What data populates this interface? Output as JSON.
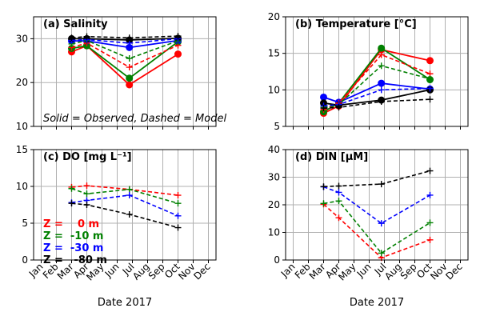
{
  "x_label": "Date 2017",
  "months": [
    "Jan",
    "Feb",
    "Mar",
    "Apr",
    "May",
    "Jun",
    "Jul",
    "Aug",
    "Sep",
    "Oct",
    "Nov",
    "Dec"
  ],
  "depth_legend": [
    {
      "label": "Z =    0 m",
      "color": "#ff0000"
    },
    {
      "label": "Z =  -10 m",
      "color": "#008000"
    },
    {
      "label": "Z =  -30 m",
      "color": "#0000ff"
    },
    {
      "label": "Z =   -80 m",
      "color": "#000000"
    }
  ],
  "style_note": "Solid = Observed, Dashed = Model",
  "colors": {
    "z0": "#ff0000",
    "z10": "#008000",
    "z30": "#0000ff",
    "z80": "#000000",
    "grid": "#b0b0b0"
  },
  "chart_data": [
    {
      "id": "salinity",
      "type": "line",
      "title": "(a) Salinity",
      "ylim": [
        10,
        35
      ],
      "yticks": [
        10,
        20,
        30
      ],
      "grid": true,
      "x": "month number (3=Mar ... 10=Oct)",
      "series": [
        {
          "depth": "z0",
          "kind": "observed",
          "points": [
            [
              3,
              27.0
            ],
            [
              4,
              28.4
            ],
            [
              6.8,
              19.5
            ],
            [
              10,
              26.5
            ]
          ]
        },
        {
          "depth": "z10",
          "kind": "observed",
          "points": [
            [
              3,
              27.8
            ],
            [
              4,
              28.4
            ],
            [
              6.8,
              21.0
            ],
            [
              10,
              29.3
            ]
          ]
        },
        {
          "depth": "z30",
          "kind": "observed",
          "points": [
            [
              3,
              29.5
            ],
            [
              4,
              29.5
            ],
            [
              6.8,
              28.0
            ],
            [
              10,
              29.6
            ]
          ]
        },
        {
          "depth": "z80",
          "kind": "observed",
          "points": [
            [
              3,
              30.0
            ],
            [
              4,
              30.0
            ],
            [
              6.8,
              29.7
            ],
            [
              10,
              30.1
            ]
          ]
        },
        {
          "depth": "z0",
          "kind": "model",
          "points": [
            [
              3,
              28.0
            ],
            [
              4,
              29.0
            ],
            [
              6.8,
              23.5
            ],
            [
              10,
              28.5
            ]
          ]
        },
        {
          "depth": "z10",
          "kind": "model",
          "points": [
            [
              3,
              28.8
            ],
            [
              4,
              29.6
            ],
            [
              6.8,
              25.5
            ],
            [
              10,
              29.5
            ]
          ]
        },
        {
          "depth": "z30",
          "kind": "model",
          "points": [
            [
              3,
              29.6
            ],
            [
              4,
              29.8
            ],
            [
              6.8,
              29.0
            ],
            [
              10,
              30.0
            ]
          ]
        },
        {
          "depth": "z80",
          "kind": "model",
          "points": [
            [
              3,
              30.2
            ],
            [
              4,
              30.5
            ],
            [
              6.8,
              30.2
            ],
            [
              10,
              30.6
            ]
          ]
        }
      ]
    },
    {
      "id": "temperature",
      "type": "line",
      "title": "(b) Temperature [°C]",
      "ylim": [
        5,
        20
      ],
      "yticks": [
        5,
        10,
        15,
        20
      ],
      "grid": true,
      "series": [
        {
          "depth": "z0",
          "kind": "observed",
          "points": [
            [
              3,
              6.8
            ],
            [
              4,
              7.8
            ],
            [
              6.8,
              15.5
            ],
            [
              10,
              14.0
            ]
          ]
        },
        {
          "depth": "z10",
          "kind": "observed",
          "points": [
            [
              3,
              7.0
            ],
            [
              4,
              8.2
            ],
            [
              6.8,
              15.7
            ],
            [
              10,
              11.4
            ]
          ]
        },
        {
          "depth": "z30",
          "kind": "observed",
          "points": [
            [
              3,
              9.0
            ],
            [
              4,
              8.3
            ],
            [
              6.8,
              10.9
            ],
            [
              10,
              10.1
            ]
          ]
        },
        {
          "depth": "z80",
          "kind": "observed",
          "points": [
            [
              3,
              8.2
            ],
            [
              4,
              7.9
            ],
            [
              6.8,
              8.6
            ],
            [
              10,
              10.0
            ]
          ]
        },
        {
          "depth": "z0",
          "kind": "model",
          "points": [
            [
              3,
              7.3
            ],
            [
              4,
              8.2
            ],
            [
              6.8,
              14.8
            ],
            [
              10,
              12.2
            ]
          ]
        },
        {
          "depth": "z10",
          "kind": "model",
          "points": [
            [
              3,
              7.6
            ],
            [
              4,
              8.0
            ],
            [
              6.8,
              13.3
            ],
            [
              10,
              11.5
            ]
          ]
        },
        {
          "depth": "z30",
          "kind": "model",
          "points": [
            [
              3,
              7.8
            ],
            [
              4,
              8.0
            ],
            [
              6.8,
              10.0
            ],
            [
              10,
              10.2
            ]
          ]
        },
        {
          "depth": "z80",
          "kind": "model",
          "points": [
            [
              3,
              7.5
            ],
            [
              4,
              7.6
            ],
            [
              6.8,
              8.4
            ],
            [
              10,
              8.7
            ]
          ]
        }
      ]
    },
    {
      "id": "do",
      "type": "line",
      "title": "(c) DO [mg L⁻¹]",
      "ylim": [
        0,
        15
      ],
      "yticks": [
        0,
        5,
        10,
        15
      ],
      "grid": true,
      "series": [
        {
          "depth": "z0",
          "kind": "model",
          "points": [
            [
              3,
              9.9
            ],
            [
              4,
              10.1
            ],
            [
              6.8,
              9.6
            ],
            [
              10,
              8.8
            ]
          ]
        },
        {
          "depth": "z10",
          "kind": "model",
          "points": [
            [
              3,
              9.7
            ],
            [
              4,
              9.0
            ],
            [
              6.8,
              9.6
            ],
            [
              10,
              7.7
            ]
          ]
        },
        {
          "depth": "z30",
          "kind": "model",
          "points": [
            [
              3,
              7.8
            ],
            [
              4,
              8.1
            ],
            [
              6.8,
              8.8
            ],
            [
              10,
              6.0
            ]
          ]
        },
        {
          "depth": "z80",
          "kind": "model",
          "points": [
            [
              3,
              7.7
            ],
            [
              4,
              7.5
            ],
            [
              6.8,
              6.2
            ],
            [
              10,
              4.4
            ]
          ]
        }
      ]
    },
    {
      "id": "din",
      "type": "line",
      "title": "(d) DIN  [μM]",
      "ylim": [
        0,
        40
      ],
      "yticks": [
        0,
        10,
        20,
        30,
        40
      ],
      "grid": true,
      "series": [
        {
          "depth": "z0",
          "kind": "model",
          "points": [
            [
              3,
              20.2
            ],
            [
              4,
              15.3
            ],
            [
              6.8,
              0.8
            ],
            [
              10,
              7.3
            ]
          ]
        },
        {
          "depth": "z10",
          "kind": "model",
          "points": [
            [
              3,
              20.5
            ],
            [
              4,
              21.4
            ],
            [
              6.8,
              2.5
            ],
            [
              10,
              13.5
            ]
          ]
        },
        {
          "depth": "z30",
          "kind": "model",
          "points": [
            [
              3,
              26.5
            ],
            [
              4,
              24.5
            ],
            [
              6.8,
              13.3
            ],
            [
              10,
              23.5
            ]
          ]
        },
        {
          "depth": "z80",
          "kind": "model",
          "points": [
            [
              3,
              26.6
            ],
            [
              4,
              26.8
            ],
            [
              6.8,
              27.5
            ],
            [
              10,
              32.3
            ]
          ]
        }
      ]
    }
  ]
}
